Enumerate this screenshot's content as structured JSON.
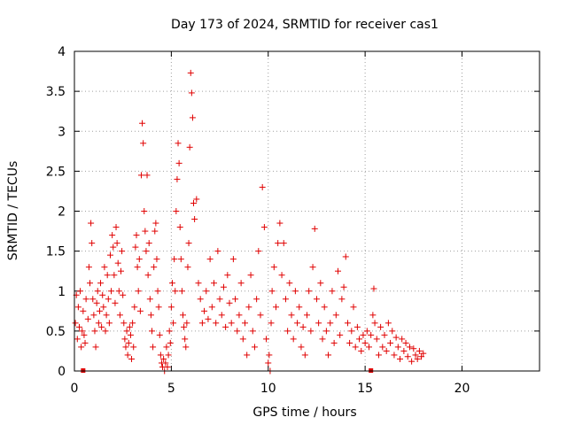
{
  "chart_data": {
    "type": "scatter",
    "title": "Day 173 of 2024, SRMTID for receiver cas1",
    "xlabel": "GPS time / hours",
    "ylabel": "SRMTID / TECUs",
    "xlim": [
      0,
      24
    ],
    "ylim": [
      0,
      4
    ],
    "x_ticks": [
      0,
      5,
      10,
      15,
      20
    ],
    "y_ticks": [
      0,
      0.5,
      1,
      1.5,
      2,
      2.5,
      3,
      3.5,
      4
    ],
    "x_tick_labels": [
      "0",
      "5",
      "10",
      "15",
      "20"
    ],
    "y_tick_labels": [
      "0",
      "0.5",
      "1",
      "1.5",
      "2",
      "2.5",
      "3",
      "3.5",
      "4"
    ],
    "grid": true,
    "marker_color": "#e00000",
    "series": [
      {
        "name": "SRMTID",
        "marker": "plus",
        "points": [
          [
            0.05,
            0.6
          ],
          [
            0.1,
            0.95
          ],
          [
            0.15,
            0.4
          ],
          [
            0.2,
            0.8
          ],
          [
            0.25,
            0.55
          ],
          [
            0.3,
            1.0
          ],
          [
            0.35,
            0.3
          ],
          [
            0.4,
            0.5
          ],
          [
            0.45,
            0.75
          ],
          [
            0.5,
            0.45
          ],
          [
            0.55,
            0.35
          ],
          [
            0.6,
            0.9
          ],
          [
            0.7,
            0.65
          ],
          [
            0.75,
            1.3
          ],
          [
            0.8,
            1.1
          ],
          [
            0.85,
            1.85
          ],
          [
            0.9,
            1.6
          ],
          [
            0.95,
            0.9
          ],
          [
            1.0,
            0.7
          ],
          [
            1.05,
            0.5
          ],
          [
            1.1,
            0.3
          ],
          [
            1.15,
            0.85
          ],
          [
            1.2,
            1.0
          ],
          [
            1.25,
            0.6
          ],
          [
            1.3,
            0.75
          ],
          [
            1.35,
            1.1
          ],
          [
            1.4,
            0.55
          ],
          [
            1.45,
            0.95
          ],
          [
            1.5,
            0.8
          ],
          [
            1.55,
            1.3
          ],
          [
            1.6,
            0.5
          ],
          [
            1.65,
            0.7
          ],
          [
            1.7,
            1.2
          ],
          [
            1.75,
            0.9
          ],
          [
            1.8,
            0.6
          ],
          [
            1.85,
            1.45
          ],
          [
            1.9,
            1.0
          ],
          [
            1.95,
            1.7
          ],
          [
            2.0,
            1.55
          ],
          [
            2.05,
            1.2
          ],
          [
            2.1,
            0.85
          ],
          [
            2.15,
            1.8
          ],
          [
            2.2,
            1.6
          ],
          [
            2.25,
            1.35
          ],
          [
            2.3,
            1.0
          ],
          [
            2.35,
            0.7
          ],
          [
            2.4,
            1.25
          ],
          [
            2.45,
            1.5
          ],
          [
            2.5,
            0.95
          ],
          [
            2.55,
            0.6
          ],
          [
            2.6,
            0.4
          ],
          [
            2.65,
            0.3
          ],
          [
            2.7,
            0.5
          ],
          [
            2.75,
            0.2
          ],
          [
            2.8,
            0.35
          ],
          [
            2.85,
            0.55
          ],
          [
            2.9,
            0.45
          ],
          [
            2.95,
            0.15
          ],
          [
            3.0,
            0.6
          ],
          [
            3.05,
            0.3
          ],
          [
            3.1,
            0.8
          ],
          [
            3.15,
            1.55
          ],
          [
            3.2,
            1.7
          ],
          [
            3.25,
            1.3
          ],
          [
            3.3,
            1.0
          ],
          [
            3.35,
            1.4
          ],
          [
            3.4,
            0.75
          ],
          [
            3.45,
            2.45
          ],
          [
            3.5,
            3.1
          ],
          [
            3.55,
            2.85
          ],
          [
            3.6,
            2.0
          ],
          [
            3.65,
            1.75
          ],
          [
            3.7,
            1.5
          ],
          [
            3.75,
            2.45
          ],
          [
            3.8,
            1.2
          ],
          [
            3.85,
            1.6
          ],
          [
            3.9,
            0.9
          ],
          [
            3.95,
            0.7
          ],
          [
            4.0,
            0.5
          ],
          [
            4.05,
            0.3
          ],
          [
            4.1,
            1.3
          ],
          [
            4.15,
            1.75
          ],
          [
            4.2,
            1.85
          ],
          [
            4.25,
            1.4
          ],
          [
            4.3,
            1.0
          ],
          [
            4.35,
            0.8
          ],
          [
            4.4,
            0.45
          ],
          [
            4.45,
            0.2
          ],
          [
            4.5,
            0.1
          ],
          [
            4.55,
            0.05
          ],
          [
            4.6,
            0.15
          ],
          [
            4.65,
            0.0
          ],
          [
            4.7,
            0.1
          ],
          [
            4.75,
            0.3
          ],
          [
            4.8,
            0.05
          ],
          [
            4.85,
            0.2
          ],
          [
            4.9,
            0.5
          ],
          [
            4.95,
            0.35
          ],
          [
            5.0,
            0.8
          ],
          [
            5.05,
            1.1
          ],
          [
            5.1,
            0.6
          ],
          [
            5.15,
            1.4
          ],
          [
            5.2,
            1.0
          ],
          [
            5.25,
            2.0
          ],
          [
            5.3,
            2.4
          ],
          [
            5.35,
            2.85
          ],
          [
            5.4,
            2.6
          ],
          [
            5.45,
            1.8
          ],
          [
            5.5,
            1.4
          ],
          [
            5.55,
            1.0
          ],
          [
            5.6,
            0.7
          ],
          [
            5.65,
            0.55
          ],
          [
            5.7,
            0.4
          ],
          [
            5.75,
            0.3
          ],
          [
            5.8,
            0.6
          ],
          [
            5.85,
            1.3
          ],
          [
            5.9,
            1.6
          ],
          [
            5.95,
            2.8
          ],
          [
            6.0,
            3.73
          ],
          [
            6.05,
            3.48
          ],
          [
            6.1,
            3.17
          ],
          [
            6.15,
            2.1
          ],
          [
            6.2,
            1.9
          ],
          [
            6.3,
            2.15
          ],
          [
            6.4,
            1.1
          ],
          [
            6.5,
            0.9
          ],
          [
            6.6,
            0.6
          ],
          [
            6.7,
            0.75
          ],
          [
            6.8,
            1.0
          ],
          [
            6.9,
            0.65
          ],
          [
            7.0,
            1.4
          ],
          [
            7.1,
            0.8
          ],
          [
            7.2,
            1.1
          ],
          [
            7.3,
            0.6
          ],
          [
            7.4,
            1.5
          ],
          [
            7.5,
            0.9
          ],
          [
            7.6,
            0.7
          ],
          [
            7.7,
            1.05
          ],
          [
            7.8,
            0.55
          ],
          [
            7.9,
            1.2
          ],
          [
            8.0,
            0.85
          ],
          [
            8.1,
            0.6
          ],
          [
            8.2,
            1.4
          ],
          [
            8.3,
            0.9
          ],
          [
            8.4,
            0.5
          ],
          [
            8.5,
            0.7
          ],
          [
            8.6,
            1.1
          ],
          [
            8.7,
            0.4
          ],
          [
            8.8,
            0.6
          ],
          [
            8.9,
            0.2
          ],
          [
            9.0,
            0.8
          ],
          [
            9.1,
            1.2
          ],
          [
            9.2,
            0.5
          ],
          [
            9.3,
            0.3
          ],
          [
            9.4,
            0.9
          ],
          [
            9.5,
            1.5
          ],
          [
            9.6,
            0.7
          ],
          [
            9.7,
            2.3
          ],
          [
            9.8,
            1.8
          ],
          [
            9.9,
            0.4
          ],
          [
            10.0,
            0.1
          ],
          [
            10.05,
            0.2
          ],
          [
            10.1,
            0.0
          ],
          [
            10.15,
            0.6
          ],
          [
            10.2,
            1.0
          ],
          [
            10.3,
            1.3
          ],
          [
            10.4,
            0.8
          ],
          [
            10.5,
            1.6
          ],
          [
            10.6,
            1.85
          ],
          [
            10.7,
            1.2
          ],
          [
            10.8,
            1.6
          ],
          [
            10.9,
            0.9
          ],
          [
            11.0,
            0.5
          ],
          [
            11.1,
            1.1
          ],
          [
            11.2,
            0.7
          ],
          [
            11.3,
            0.4
          ],
          [
            11.4,
            1.0
          ],
          [
            11.5,
            0.6
          ],
          [
            11.6,
            0.8
          ],
          [
            11.7,
            0.3
          ],
          [
            11.8,
            0.55
          ],
          [
            11.9,
            0.2
          ],
          [
            12.0,
            0.7
          ],
          [
            12.1,
            1.0
          ],
          [
            12.2,
            0.5
          ],
          [
            12.3,
            1.3
          ],
          [
            12.4,
            1.78
          ],
          [
            12.5,
            0.9
          ],
          [
            12.6,
            0.6
          ],
          [
            12.7,
            1.1
          ],
          [
            12.8,
            0.4
          ],
          [
            12.9,
            0.8
          ],
          [
            13.0,
            0.5
          ],
          [
            13.1,
            0.2
          ],
          [
            13.2,
            0.6
          ],
          [
            13.3,
            1.0
          ],
          [
            13.4,
            0.35
          ],
          [
            13.5,
            0.7
          ],
          [
            13.6,
            1.25
          ],
          [
            13.7,
            0.45
          ],
          [
            13.8,
            0.9
          ],
          [
            13.9,
            1.05
          ],
          [
            14.0,
            1.43
          ],
          [
            14.1,
            0.6
          ],
          [
            14.2,
            0.35
          ],
          [
            14.3,
            0.5
          ],
          [
            14.4,
            0.8
          ],
          [
            14.5,
            0.3
          ],
          [
            14.6,
            0.55
          ],
          [
            14.7,
            0.4
          ],
          [
            14.8,
            0.25
          ],
          [
            14.9,
            0.45
          ],
          [
            15.0,
            0.35
          ],
          [
            15.1,
            0.5
          ],
          [
            15.2,
            0.3
          ],
          [
            15.3,
            0.45
          ],
          [
            15.4,
            0.7
          ],
          [
            15.45,
            1.03
          ],
          [
            15.5,
            0.6
          ],
          [
            15.6,
            0.4
          ],
          [
            15.7,
            0.2
          ],
          [
            15.8,
            0.55
          ],
          [
            15.9,
            0.3
          ],
          [
            16.0,
            0.45
          ],
          [
            16.1,
            0.25
          ],
          [
            16.2,
            0.6
          ],
          [
            16.3,
            0.35
          ],
          [
            16.4,
            0.5
          ],
          [
            16.5,
            0.2
          ],
          [
            16.6,
            0.42
          ],
          [
            16.7,
            0.3
          ],
          [
            16.8,
            0.15
          ],
          [
            16.9,
            0.4
          ],
          [
            17.0,
            0.25
          ],
          [
            17.1,
            0.35
          ],
          [
            17.2,
            0.18
          ],
          [
            17.3,
            0.3
          ],
          [
            17.4,
            0.12
          ],
          [
            17.5,
            0.28
          ],
          [
            17.6,
            0.2
          ],
          [
            17.7,
            0.15
          ],
          [
            17.8,
            0.25
          ],
          [
            17.9,
            0.18
          ],
          [
            18.0,
            0.22
          ]
        ]
      }
    ],
    "gap_markers": [
      0.45,
      15.3
    ]
  }
}
